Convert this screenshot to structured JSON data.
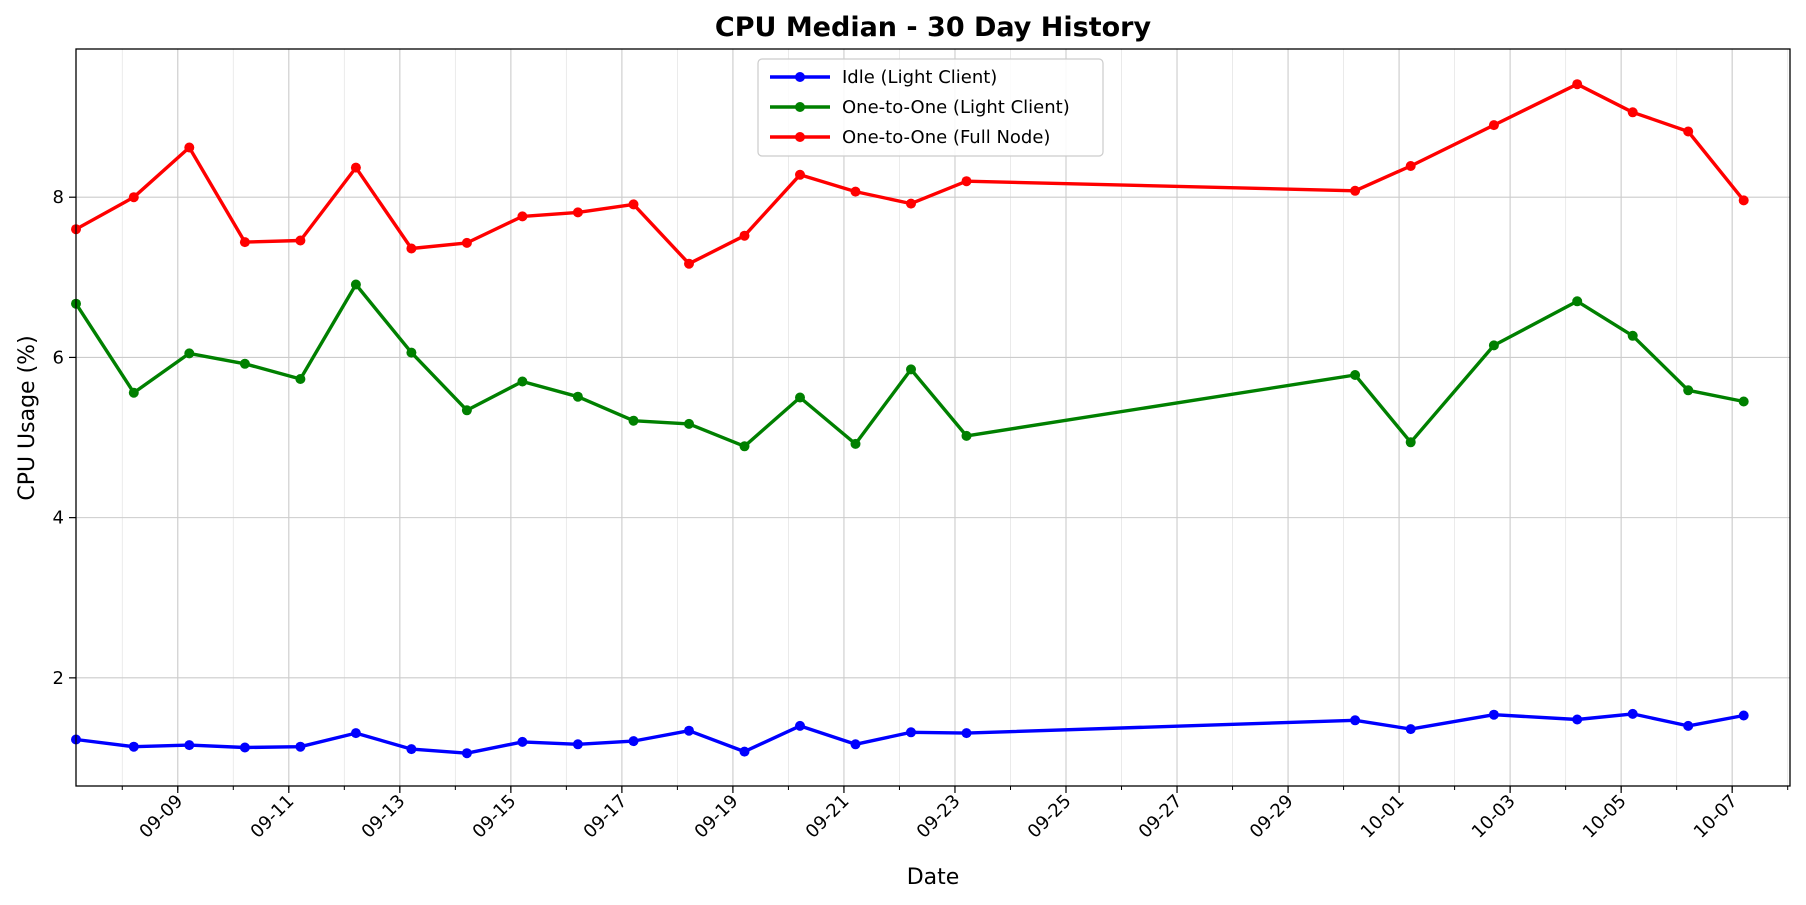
{
  "chart_data": {
    "type": "line",
    "title": "CPU Median - 30 Day History",
    "xlabel": "Date",
    "ylabel": "CPU Usage (%)",
    "x_tick_labels": [
      "09-09",
      "09-11",
      "09-13",
      "09-15",
      "09-17",
      "09-19",
      "09-21",
      "09-23",
      "09-25",
      "09-27",
      "09-29",
      "10-01",
      "10-03",
      "10-05",
      "10-07"
    ],
    "y_tick_labels": [
      "2",
      "4",
      "6",
      "8"
    ],
    "ylim": [
      0.65,
      9.85
    ],
    "xlim": [
      "2025-09-07T04:00",
      "2025-10-08T01:00"
    ],
    "x_major_ticks": [
      "2025-09-09",
      "2025-09-11",
      "2025-09-13",
      "2025-09-15",
      "2025-09-17",
      "2025-09-19",
      "2025-09-21",
      "2025-09-23",
      "2025-09-25",
      "2025-09-27",
      "2025-09-29",
      "2025-10-01",
      "2025-10-03",
      "2025-10-05",
      "2025-10-07"
    ],
    "y_major_ticks": [
      2,
      4,
      6,
      8
    ],
    "grid": true,
    "legend_position": "top-center",
    "x": [
      "2025-09-07T04:00",
      "2025-09-08T05:00",
      "2025-09-09T05:00",
      "2025-09-10T05:00",
      "2025-09-11T05:00",
      "2025-09-12T05:00",
      "2025-09-13T05:00",
      "2025-09-14T05:00",
      "2025-09-15T05:00",
      "2025-09-16T05:00",
      "2025-09-17T05:00",
      "2025-09-18T05:00",
      "2025-09-19T05:00",
      "2025-09-20T05:00",
      "2025-09-21T05:00",
      "2025-09-22T05:00",
      "2025-09-23T05:00",
      "2025-09-30T05:00",
      "2025-10-01T05:00",
      "2025-10-02T17:00",
      "2025-10-04T05:00",
      "2025-10-05T05:00",
      "2025-10-06T05:00",
      "2025-10-07T05:00"
    ],
    "series": [
      {
        "name": "Idle (Light Client)",
        "color": "#0000ff",
        "values": [
          1.23,
          1.14,
          1.16,
          1.13,
          1.14,
          1.31,
          1.11,
          1.06,
          1.2,
          1.17,
          1.21,
          1.34,
          1.08,
          1.4,
          1.17,
          1.32,
          1.31,
          1.47,
          1.36,
          1.54,
          1.48,
          1.55,
          1.4,
          1.53
        ]
      },
      {
        "name": "One-to-One (Light Client)",
        "color": "#008000",
        "values": [
          6.67,
          5.56,
          6.05,
          5.92,
          5.73,
          6.91,
          6.06,
          5.34,
          5.7,
          5.51,
          5.21,
          5.17,
          4.89,
          5.5,
          4.92,
          5.85,
          5.02,
          5.78,
          4.94,
          6.15,
          6.7,
          6.27,
          5.59,
          5.45
        ]
      },
      {
        "name": "One-to-One (Full Node)",
        "color": "#ff0000",
        "values": [
          7.6,
          8.0,
          8.62,
          7.44,
          7.46,
          8.37,
          7.36,
          7.43,
          7.76,
          7.81,
          7.91,
          7.17,
          7.52,
          8.28,
          8.07,
          7.92,
          8.2,
          8.08,
          8.39,
          8.9,
          9.41,
          9.06,
          8.82,
          7.96
        ]
      }
    ]
  }
}
